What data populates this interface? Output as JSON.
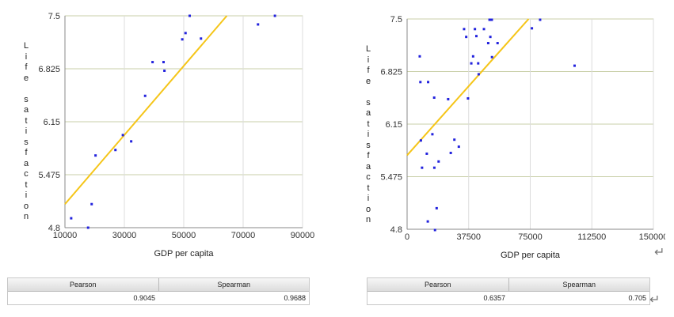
{
  "panels": [
    {
      "ylabel_text": "Life satisfaction",
      "pearson_header": "Pearson",
      "spearman_header": "Spearman",
      "pearson_value": "0.9045",
      "spearman_value": "0.9688",
      "show_return_icons": false
    },
    {
      "ylabel_text": "Life satisfaction",
      "pearson_header": "Pearson",
      "spearman_header": "Spearman",
      "pearson_value": "0.6357",
      "spearman_value": "0.705",
      "show_return_icons": true
    }
  ],
  "colors": {
    "points": "#2222dd",
    "fit_line": "#f5c518",
    "grid": "#c9cfa8",
    "axis": "#888888"
  },
  "chart_data": [
    {
      "type": "scatter",
      "title": "",
      "xlabel": "GDP per capita",
      "ylabel": "Life satisfaction",
      "xlim": [
        10000,
        90000
      ],
      "ylim": [
        4.8,
        7.5
      ],
      "xticks": [
        "10000",
        "30000",
        "50000",
        "70000",
        "90000"
      ],
      "yticks": [
        "4.8",
        "5.475",
        "6.15",
        "6.825",
        "7.5"
      ],
      "grid": true,
      "points": [
        [
          12100,
          4.92
        ],
        [
          17800,
          4.8
        ],
        [
          19000,
          5.1
        ],
        [
          20300,
          5.72
        ],
        [
          27000,
          5.79
        ],
        [
          29500,
          5.98
        ],
        [
          32300,
          5.9
        ],
        [
          37000,
          6.48
        ],
        [
          39500,
          6.91
        ],
        [
          43200,
          6.91
        ],
        [
          43500,
          6.8
        ],
        [
          49500,
          7.2
        ],
        [
          50600,
          7.28
        ],
        [
          52000,
          7.5
        ],
        [
          55800,
          7.21
        ],
        [
          75000,
          7.39
        ],
        [
          80700,
          7.5
        ]
      ],
      "fit_line": [
        [
          10000,
          5.1
        ],
        [
          64500,
          7.5
        ]
      ]
    },
    {
      "type": "scatter",
      "title": "",
      "xlabel": "GDP per capita",
      "ylabel": "Life satisfaction",
      "xlim": [
        0,
        150000
      ],
      "ylim": [
        4.8,
        7.5
      ],
      "xticks": [
        "0",
        "37500",
        "75000",
        "112500",
        "150000"
      ],
      "yticks": [
        "4.8",
        "5.475",
        "6.15",
        "6.825",
        "7.5"
      ],
      "grid": true,
      "points": [
        [
          7700,
          7.02
        ],
        [
          8100,
          6.69
        ],
        [
          8400,
          5.94
        ],
        [
          9100,
          5.59
        ],
        [
          12000,
          5.77
        ],
        [
          12600,
          4.9
        ],
        [
          12800,
          6.69
        ],
        [
          15400,
          6.02
        ],
        [
          16500,
          6.49
        ],
        [
          16600,
          5.59
        ],
        [
          17000,
          4.79
        ],
        [
          18000,
          5.07
        ],
        [
          19200,
          5.67
        ],
        [
          25000,
          6.47
        ],
        [
          26600,
          5.78
        ],
        [
          28800,
          5.95
        ],
        [
          31500,
          5.86
        ],
        [
          34700,
          7.37
        ],
        [
          36000,
          7.27
        ],
        [
          37100,
          6.48
        ],
        [
          39100,
          6.93
        ],
        [
          40200,
          7.02
        ],
        [
          41300,
          7.37
        ],
        [
          42200,
          7.28
        ],
        [
          43300,
          6.93
        ],
        [
          43600,
          6.79
        ],
        [
          46800,
          7.37
        ],
        [
          49400,
          7.19
        ],
        [
          50200,
          7.49
        ],
        [
          50700,
          7.27
        ],
        [
          51600,
          7.49
        ],
        [
          51700,
          7.01
        ],
        [
          55100,
          7.19
        ],
        [
          76000,
          7.38
        ],
        [
          81000,
          7.49
        ],
        [
          102000,
          6.9
        ]
      ],
      "fit_line": [
        [
          0,
          5.75
        ],
        [
          74000,
          7.5
        ]
      ]
    }
  ]
}
